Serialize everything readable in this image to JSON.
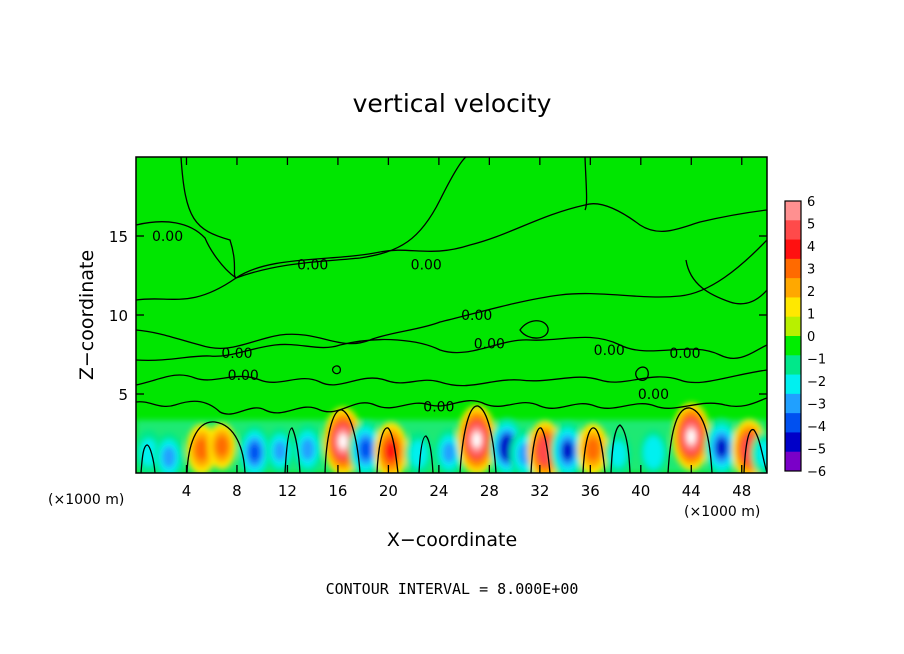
{
  "chart_data": {
    "type": "heatmap",
    "title": "vertical velocity",
    "xlabel": "X−coordinate",
    "ylabel": "Z−coordinate",
    "x_unit_left": "(×1000 m)",
    "x_unit_right": "(×1000 m)",
    "footer": "CONTOUR INTERVAL = 8.000E+00",
    "xlim": [
      0,
      50
    ],
    "ylim": [
      0,
      20
    ],
    "x_ticks": [
      4,
      8,
      12,
      16,
      20,
      24,
      28,
      32,
      36,
      40,
      44,
      48
    ],
    "y_ticks": [
      5,
      10,
      15
    ],
    "colorbar": {
      "ticks": [
        6,
        5,
        4,
        3,
        2,
        1,
        0,
        -1,
        -2,
        -3,
        -4,
        -5,
        -6
      ],
      "tick_labels": [
        "6",
        "5",
        "4",
        "3",
        "2",
        "1",
        "0",
        "−1",
        "−2",
        "−3",
        "−4",
        "−5",
        "−6"
      ],
      "colors": [
        "#ff9090",
        "#ff4a4a",
        "#ff1010",
        "#ff6a00",
        "#ffa800",
        "#ffe800",
        "#b8f000",
        "#00ee00",
        "#00e88a",
        "#00f0f0",
        "#20a0ff",
        "#0050f0",
        "#0000c8",
        "#7a00c8"
      ]
    },
    "contour_labels": [
      {
        "text": "0.00",
        "x": 2.5,
        "z": 15.0
      },
      {
        "text": "0.00",
        "x": 14.0,
        "z": 13.2
      },
      {
        "text": "0.00",
        "x": 23.0,
        "z": 13.2
      },
      {
        "text": "0.00",
        "x": 27.0,
        "z": 10.0
      },
      {
        "text": "0.00",
        "x": 28.0,
        "z": 8.2
      },
      {
        "text": "0.00",
        "x": 8.0,
        "z": 7.6
      },
      {
        "text": "0.00",
        "x": 8.5,
        "z": 6.2
      },
      {
        "text": "0.00",
        "x": 24.0,
        "z": 4.2
      },
      {
        "text": "0.00",
        "x": 37.5,
        "z": 7.8
      },
      {
        "text": "0.00",
        "x": 43.5,
        "z": 7.6
      },
      {
        "text": "0.00",
        "x": 41.0,
        "z": 5.0
      }
    ],
    "cells": [
      {
        "x": 5.2,
        "z": 1.5,
        "value": 3.2
      },
      {
        "x": 6.8,
        "z": 1.7,
        "value": 2.6
      },
      {
        "x": 9.4,
        "z": 1.3,
        "value": -3.8
      },
      {
        "x": 11.4,
        "z": 1.4,
        "value": -2.6
      },
      {
        "x": 13.6,
        "z": 1.5,
        "value": -3.2
      },
      {
        "x": 16.4,
        "z": 2.0,
        "value": 5.8
      },
      {
        "x": 18.2,
        "z": 1.5,
        "value": -4.2
      },
      {
        "x": 20.2,
        "z": 1.4,
        "value": 4.2
      },
      {
        "x": 22.4,
        "z": 1.2,
        "value": -2.4
      },
      {
        "x": 24.8,
        "z": 1.3,
        "value": -2.8
      },
      {
        "x": 27.0,
        "z": 2.1,
        "value": 5.9
      },
      {
        "x": 29.4,
        "z": 1.6,
        "value": -4.5
      },
      {
        "x": 30.8,
        "z": 1.2,
        "value": -3.2
      },
      {
        "x": 32.4,
        "z": 1.4,
        "value": 4.6
      },
      {
        "x": 34.2,
        "z": 1.4,
        "value": -4.3
      },
      {
        "x": 36.2,
        "z": 1.5,
        "value": 3.4
      },
      {
        "x": 38.2,
        "z": 1.2,
        "value": -2.2
      },
      {
        "x": 41.0,
        "z": 1.3,
        "value": -2.5
      },
      {
        "x": 44.0,
        "z": 2.3,
        "value": 5.7
      },
      {
        "x": 46.4,
        "z": 1.6,
        "value": -4.4
      },
      {
        "x": 48.6,
        "z": 1.5,
        "value": 4.6
      },
      {
        "x": 1.0,
        "z": 1.3,
        "value": -2.4
      },
      {
        "x": 2.6,
        "z": 1.0,
        "value": -3.0
      },
      {
        "x": 49.8,
        "z": 1.2,
        "value": -2.3
      }
    ]
  }
}
